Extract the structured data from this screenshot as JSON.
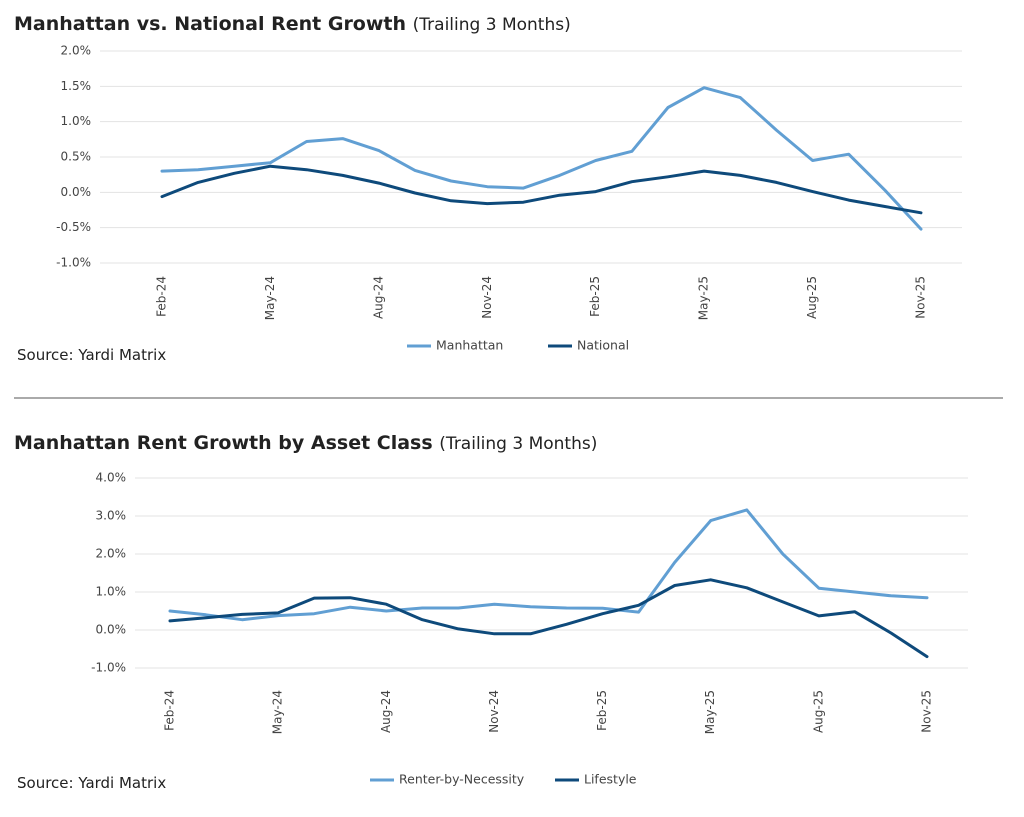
{
  "chart_data": [
    {
      "type": "line",
      "title": "Manhattan vs. National Rent Growth",
      "subtitle": "(Trailing 3 Months)",
      "categories": [
        "Feb-24",
        null,
        null,
        "May-24",
        null,
        null,
        "Aug-24",
        null,
        null,
        "Nov-24",
        null,
        null,
        "Feb-25",
        null,
        null,
        "May-25",
        null,
        null,
        "Aug-25",
        null,
        null,
        "Nov-25"
      ],
      "series": [
        {
          "name": "Manhattan",
          "color": "#619fd3",
          "values": [
            0.3,
            0.32,
            0.37,
            0.42,
            0.72,
            0.76,
            0.59,
            0.31,
            0.16,
            0.08,
            0.06,
            0.24,
            0.45,
            0.58,
            1.2,
            1.48,
            1.34,
            0.88,
            0.45,
            0.54,
            0.03,
            -0.52
          ]
        },
        {
          "name": "National",
          "color": "#0e4a7b",
          "values": [
            -0.06,
            0.14,
            0.27,
            0.37,
            0.32,
            0.24,
            0.13,
            -0.01,
            -0.12,
            -0.16,
            -0.14,
            -0.04,
            0.01,
            0.15,
            0.22,
            0.3,
            0.24,
            0.14,
            0.01,
            -0.11,
            -0.2,
            -0.29
          ]
        }
      ],
      "ylim": [
        -1,
        2
      ],
      "yticks": [
        {
          "value": -1,
          "label": "-1.0%"
        },
        {
          "value": -0.5,
          "label": "-0.5%"
        },
        {
          "value": 0,
          "label": "0.0%"
        },
        {
          "value": 0.5,
          "label": "0.5%"
        },
        {
          "value": 1,
          "label": "1.0%"
        },
        {
          "value": 1.5,
          "label": "1.5%"
        },
        {
          "value": 2,
          "label": "2.0%"
        }
      ],
      "grid": true,
      "legend": "bottom",
      "source": "Source: Yardi Matrix"
    },
    {
      "type": "line",
      "title": "Manhattan Rent Growth by Asset Class",
      "subtitle": "(Trailing 3 Months)",
      "categories": [
        "Feb-24",
        null,
        null,
        "May-24",
        null,
        null,
        "Aug-24",
        null,
        null,
        "Nov-24",
        null,
        null,
        "Feb-25",
        null,
        null,
        "May-25",
        null,
        null,
        "Aug-25",
        null,
        null,
        "Nov-25"
      ],
      "series": [
        {
          "name": "Renter-by-Necessity",
          "color": "#619fd3",
          "values": [
            0.5,
            0.4,
            0.27,
            0.38,
            0.43,
            0.6,
            0.5,
            0.58,
            0.58,
            0.68,
            0.61,
            0.58,
            0.57,
            0.47,
            1.78,
            2.88,
            3.16,
            2.0,
            1.1,
            1.0,
            0.9,
            0.85
          ]
        },
        {
          "name": "Lifestyle",
          "color": "#0e4a7b",
          "values": [
            0.24,
            0.32,
            0.41,
            0.45,
            0.84,
            0.85,
            0.68,
            0.27,
            0.03,
            -0.1,
            -0.1,
            0.15,
            0.43,
            0.65,
            1.17,
            1.32,
            1.11,
            0.74,
            0.37,
            0.48,
            -0.08,
            -0.7
          ]
        }
      ],
      "ylim": [
        -1,
        4
      ],
      "yticks": [
        {
          "value": -1,
          "label": "-1.0%"
        },
        {
          "value": 0,
          "label": "0.0%"
        },
        {
          "value": 1,
          "label": "1.0%"
        },
        {
          "value": 2,
          "label": "2.0%"
        },
        {
          "value": 3,
          "label": "3.0%"
        },
        {
          "value": 4,
          "label": "4.0%"
        }
      ],
      "grid": true,
      "legend": "bottom",
      "source": "Source: Yardi Matrix"
    }
  ]
}
